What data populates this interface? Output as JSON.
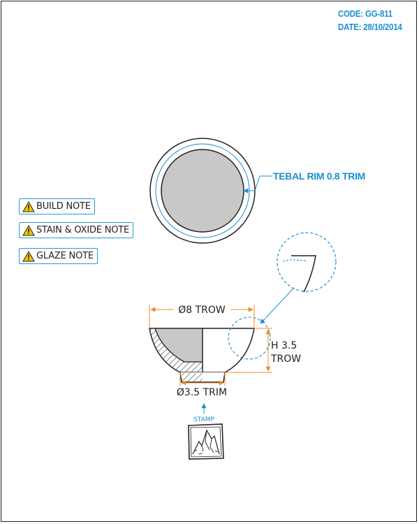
{
  "header": {
    "code": "CODE: GG-811",
    "date": "DATE: 28/10/2014"
  },
  "notes": [
    {
      "label": "BUILD NOTE",
      "icon": "warning-icon"
    },
    {
      "label": "STAIN & OXIDE NOTE",
      "icon": "warning-icon"
    },
    {
      "label": "GLAZE NOTE",
      "icon": "warning-icon"
    }
  ],
  "drawing": {
    "rim_callout": "TEBAL RIM 0.8 TRIM",
    "top_diameter": "Ø8 TROW",
    "height_line1": "H 3.5",
    "height_line2": "TROW",
    "foot_diameter": "Ø3.5 TRIM",
    "stamp_label": "STAMP"
  },
  "colors": {
    "accent_blue": "#1a8fd0",
    "dimension_orange": "#f08a24",
    "fill_gray": "#c8c8c8",
    "warning_yellow": "#f5c400"
  }
}
